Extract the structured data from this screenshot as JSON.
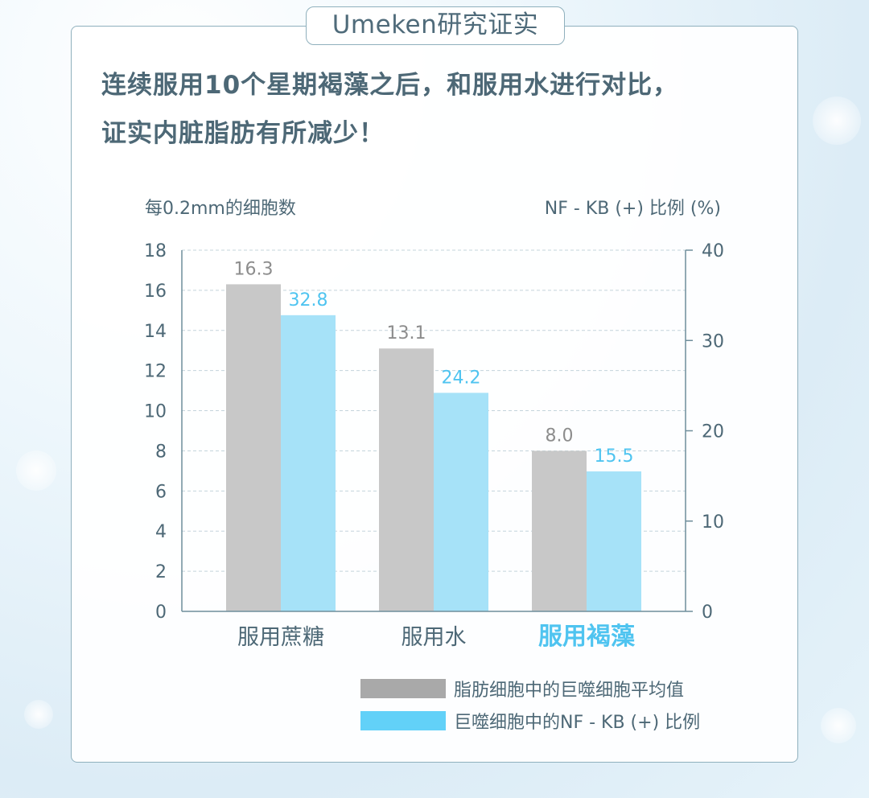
{
  "badge": {
    "text": "Umeken研究证实"
  },
  "headline": {
    "line1": "连续服用10个星期褐藻之后，和服用水进行对比，",
    "line2": "证实内脏脂肪有所减少！"
  },
  "colors": {
    "gray_series": "#c8c8c8",
    "blue_series": "#a6e2f8",
    "legend_blue": "#62d1f8",
    "highlight_text": "#4fc4f0",
    "axis": "#6f8e9b",
    "text": "#4d6876"
  },
  "chart_data": {
    "type": "bar",
    "categories": [
      "服用蔗糖",
      "服用水",
      "服用褐藻"
    ],
    "highlight_category": "服用褐藻",
    "series": [
      {
        "name": "脂肪细胞中的巨噬细胞平均值",
        "axis": "left",
        "values": [
          16.3,
          13.1,
          8.0
        ],
        "labels": [
          "16.3",
          "13.1",
          "8.0"
        ]
      },
      {
        "name": "巨噬细胞中的NF - KB (+) 比例",
        "axis": "right",
        "values": [
          32.8,
          24.2,
          15.5
        ],
        "labels": [
          "32.8",
          "24.2",
          "15.5"
        ]
      }
    ],
    "ylabel": "每0.2mm的细胞数",
    "ylim": [
      0,
      18
    ],
    "yticks": [
      "0",
      "2",
      "4",
      "6",
      "8",
      "10",
      "12",
      "14",
      "16",
      "18"
    ],
    "y2label": "NF - KB (+) 比例 (%)",
    "y2lim": [
      0,
      40
    ],
    "y2ticks": [
      "0",
      "10",
      "20",
      "30",
      "40"
    ],
    "grid": true,
    "legend_position": "bottom-right"
  }
}
